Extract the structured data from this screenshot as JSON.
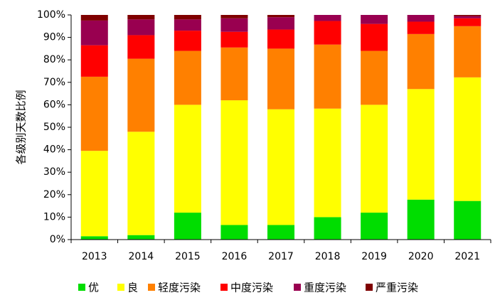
{
  "chart_data": {
    "type": "bar",
    "stacked": true,
    "percent": true,
    "categories": [
      "2013",
      "2014",
      "2015",
      "2016",
      "2017",
      "2018",
      "2019",
      "2020",
      "2021"
    ],
    "ylabel": "各级别天数比例",
    "xlabel": "",
    "ylim": [
      0,
      100
    ],
    "yticks": [
      "0%",
      "10%",
      "20%",
      "30%",
      "40%",
      "50%",
      "60%",
      "70%",
      "80%",
      "90%",
      "100%"
    ],
    "grid": false,
    "legend": "bottom",
    "series": [
      {
        "name": "优",
        "color": "#00dd00",
        "values": [
          1.5,
          2.0,
          12.0,
          6.5,
          6.5,
          10.0,
          12.0,
          17.8,
          17.2
        ]
      },
      {
        "name": "良",
        "color": "#ffff00",
        "values": [
          38.0,
          46.0,
          48.0,
          55.5,
          51.5,
          48.3,
          48.0,
          49.2,
          55.0
        ]
      },
      {
        "name": "轻度污染",
        "color": "#ff8000",
        "values": [
          33.0,
          32.5,
          24.0,
          23.5,
          27.0,
          28.5,
          24.0,
          24.5,
          22.8
        ]
      },
      {
        "name": "中度污染",
        "color": "#ff0000",
        "values": [
          14.0,
          10.5,
          9.0,
          7.0,
          8.5,
          10.5,
          12.0,
          5.5,
          3.5
        ]
      },
      {
        "name": "重度污染",
        "color": "#990050",
        "values": [
          11.0,
          7.0,
          5.0,
          6.0,
          5.5,
          2.7,
          4.0,
          3.0,
          1.0
        ]
      },
      {
        "name": "严重污染",
        "color": "#7f0000",
        "values": [
          2.5,
          2.0,
          2.0,
          1.5,
          1.0,
          0,
          0,
          0,
          0.5
        ]
      }
    ]
  }
}
